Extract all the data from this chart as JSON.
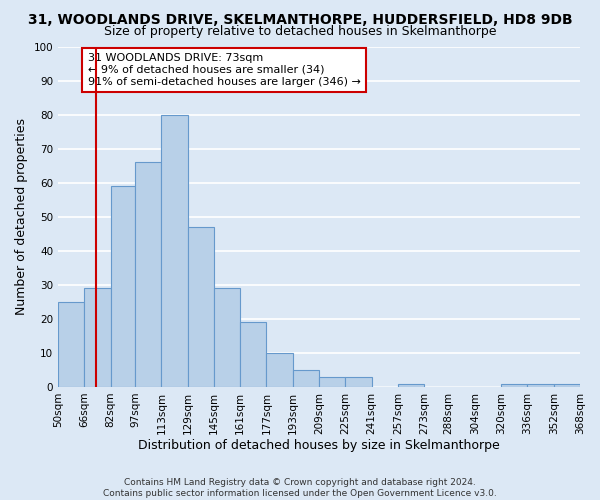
{
  "title": "31, WOODLANDS DRIVE, SKELMANTHORPE, HUDDERSFIELD, HD8 9DB",
  "subtitle": "Size of property relative to detached houses in Skelmanthorpe",
  "xlabel": "Distribution of detached houses by size in Skelmanthorpe",
  "ylabel": "Number of detached properties",
  "bin_edges": [
    50,
    66,
    82,
    97,
    113,
    129,
    145,
    161,
    177,
    193,
    209,
    225,
    241,
    257,
    273,
    288,
    304,
    320,
    336,
    352,
    368
  ],
  "bin_labels": [
    "50sqm",
    "66sqm",
    "82sqm",
    "97sqm",
    "113sqm",
    "129sqm",
    "145sqm",
    "161sqm",
    "177sqm",
    "193sqm",
    "209sqm",
    "225sqm",
    "241sqm",
    "257sqm",
    "273sqm",
    "288sqm",
    "304sqm",
    "320sqm",
    "336sqm",
    "352sqm",
    "368sqm"
  ],
  "bar_heights": [
    25,
    29,
    59,
    66,
    80,
    47,
    29,
    19,
    10,
    5,
    3,
    3,
    0,
    1,
    0,
    0,
    0,
    1,
    1,
    1
  ],
  "bar_color": "#b8d0e8",
  "bar_edge_color": "#6699cc",
  "ylim": [
    0,
    100
  ],
  "yticks": [
    0,
    10,
    20,
    30,
    40,
    50,
    60,
    70,
    80,
    90,
    100
  ],
  "vline_x": 73,
  "vline_color": "#cc0000",
  "annotation_box_text": "31 WOODLANDS DRIVE: 73sqm\n← 9% of detached houses are smaller (34)\n91% of semi-detached houses are larger (346) →",
  "footer_line1": "Contains HM Land Registry data © Crown copyright and database right 2024.",
  "footer_line2": "Contains public sector information licensed under the Open Government Licence v3.0.",
  "background_color": "#dce8f5",
  "grid_color": "#ffffff",
  "title_fontsize": 10,
  "subtitle_fontsize": 9,
  "axis_label_fontsize": 9,
  "tick_fontsize": 7.5,
  "footer_fontsize": 6.5
}
